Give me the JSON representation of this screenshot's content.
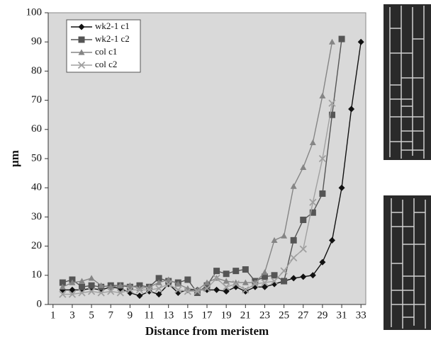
{
  "chart_data": {
    "type": "line",
    "x_label": "Distance from meristem",
    "y_label": "μm",
    "x": [
      2,
      3,
      4,
      5,
      6,
      7,
      8,
      9,
      10,
      11,
      12,
      13,
      14,
      15,
      16,
      17,
      18,
      19,
      20,
      21,
      22,
      23,
      24,
      25,
      26,
      27,
      28,
      29,
      30,
      31,
      32,
      33
    ],
    "series": [
      {
        "name": "wk2-1 c1",
        "color": "#111111",
        "marker": "diamond",
        "values": [
          5,
          5,
          5,
          5.5,
          5,
          6,
          5.5,
          4,
          3,
          4.5,
          3.5,
          7,
          4,
          5,
          5,
          5,
          5,
          4.5,
          6,
          4.5,
          6,
          6,
          7,
          8,
          9,
          9.5,
          10,
          14.5,
          22,
          40,
          67,
          90
        ]
      },
      {
        "name": "wk2-1 c2",
        "color": "#555555",
        "marker": "square",
        "values": [
          7.5,
          8.5,
          6,
          6.5,
          6,
          6.5,
          6.5,
          6,
          6.5,
          6,
          9,
          8,
          7.5,
          8.5,
          4,
          6.5,
          11.5,
          10.5,
          11.5,
          12,
          8,
          9.5,
          10,
          8,
          22,
          29,
          31.5,
          38,
          65,
          91,
          null,
          null
        ]
      },
      {
        "name": "col c1",
        "color": "#858585",
        "marker": "triangle",
        "values": [
          6,
          7.5,
          8,
          9,
          6.5,
          6,
          6.5,
          6.5,
          5.5,
          6,
          7.5,
          8.5,
          7,
          5.5,
          5,
          7.5,
          9,
          8,
          7.5,
          7.5,
          7.5,
          11,
          22,
          23.5,
          40.5,
          47,
          55.5,
          71.5,
          90,
          null,
          null,
          null
        ]
      },
      {
        "name": "col c2",
        "color": "#a0a0a0",
        "marker": "x",
        "values": [
          3.5,
          3.5,
          4,
          4.5,
          4,
          4.5,
          4,
          5,
          5,
          5,
          5.5,
          7,
          5,
          4.5,
          4.5,
          5.5,
          9,
          6,
          7,
          5,
          7,
          7.5,
          8,
          11.5,
          16,
          19,
          35,
          50,
          69,
          null,
          null,
          null
        ]
      }
    ],
    "xlim": [
      0.5,
      33.5
    ],
    "xticks": [
      1,
      3,
      5,
      7,
      9,
      11,
      13,
      15,
      17,
      19,
      21,
      23,
      25,
      27,
      29,
      31,
      33
    ],
    "ylim": [
      0,
      100
    ],
    "yticks": [
      0,
      10,
      20,
      30,
      40,
      50,
      60,
      70,
      80,
      90,
      100
    ],
    "plot_background": "#d9d9d9"
  }
}
